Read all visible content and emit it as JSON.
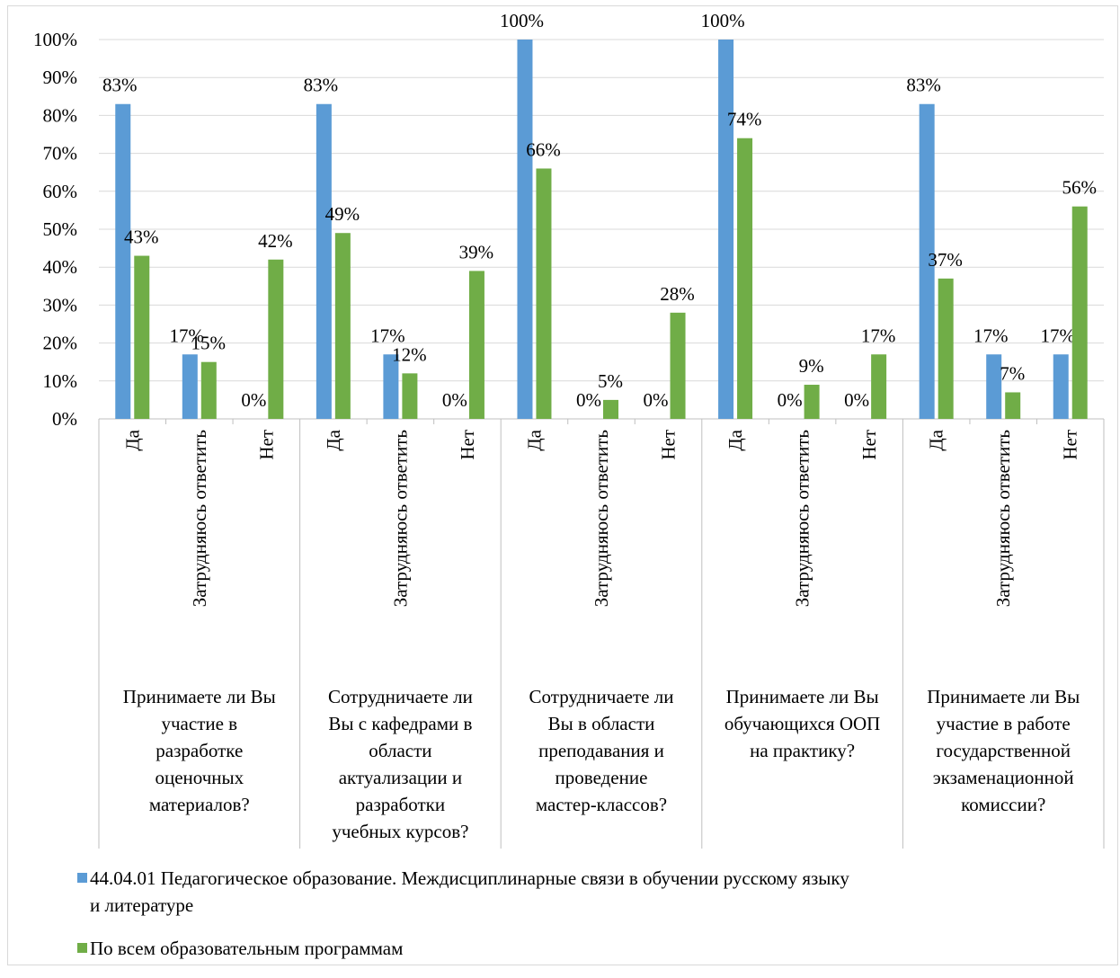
{
  "chart_data": {
    "type": "bar",
    "ylim": [
      0,
      100
    ],
    "yticks": [
      "0%",
      "10%",
      "20%",
      "30%",
      "40%",
      "50%",
      "60%",
      "70%",
      "80%",
      "90%",
      "100%"
    ],
    "grid": true,
    "legend_position": "bottom",
    "groups": [
      {
        "label": "Принимаете ли Вы участие в разработке оценочных материалов?",
        "label_lines": [
          "Принимаете ли Вы",
          "участие в",
          "разработке",
          "оценочных",
          "материалов?"
        ],
        "categories": [
          "Да",
          "Затрудняюсь ответить",
          "Нет"
        ],
        "series_values": [
          [
            83,
            17,
            0
          ],
          [
            43,
            15,
            42
          ]
        ]
      },
      {
        "label": "Сотрудничаете ли Вы с кафедрами в области актуализации и разработки учебных курсов?",
        "label_lines": [
          "Сотрудничаете ли",
          "Вы с кафедрами в",
          "области",
          "актуализации и",
          "разработки",
          "учебных курсов?"
        ],
        "categories": [
          "Да",
          "Затрудняюсь ответить",
          "Нет"
        ],
        "series_values": [
          [
            83,
            17,
            0
          ],
          [
            49,
            12,
            39
          ]
        ]
      },
      {
        "label": "Сотрудничаете ли Вы в области преподавания и проведение мастер-классов?",
        "label_lines": [
          "Сотрудничаете ли",
          "Вы в области",
          "преподавания и",
          "проведение",
          "мастер-классов?"
        ],
        "categories": [
          "Да",
          "Затрудняюсь ответить",
          "Нет"
        ],
        "series_values": [
          [
            100,
            0,
            0
          ],
          [
            66,
            5,
            28
          ]
        ]
      },
      {
        "label": "Принимаете ли Вы обучающихся ООП на практику?",
        "label_lines": [
          "Принимаете ли Вы",
          "обучающихся ООП",
          "на практику?"
        ],
        "categories": [
          "Да",
          "Затрудняюсь ответить",
          "Нет"
        ],
        "series_values": [
          [
            100,
            0,
            0
          ],
          [
            74,
            9,
            17
          ]
        ]
      },
      {
        "label": "Принимаете ли Вы участие в работе государственной экзаменационной комиссии?",
        "label_lines": [
          "Принимаете ли Вы",
          "участие в работе",
          "государственной",
          "экзаменационной",
          "комиссии?"
        ],
        "categories": [
          "Да",
          "Затрудняюсь ответить",
          "Нет"
        ],
        "series_values": [
          [
            83,
            17,
            17
          ],
          [
            37,
            7,
            56
          ]
        ]
      }
    ],
    "series": [
      {
        "name": "44.04.01 Педагогическое образование. Междисциплинарные связи в обучении русскому языку и литературе",
        "color": "#5b9bd5"
      },
      {
        "name": "По всем образовательным программам",
        "color": "#70ad47"
      }
    ]
  },
  "legend": {
    "items": [
      {
        "lines": [
          "44.04.01 Педагогическое образование. Междисциплинарные связи в обучении русскому языку",
          "и литературе"
        ],
        "color": "#5b9bd5"
      },
      {
        "lines": [
          "По всем образовательным программам"
        ],
        "color": "#70ad47"
      }
    ]
  }
}
